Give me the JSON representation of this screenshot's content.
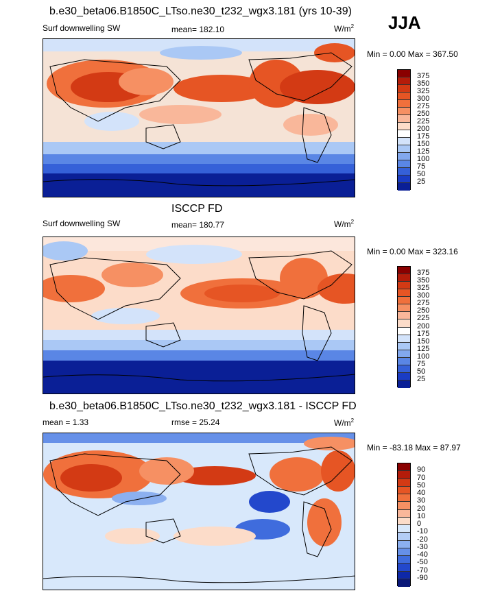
{
  "season": "JJA",
  "panels": [
    {
      "title": "b.e30_beta06.B1850C_LTso.ne30_t232_wgx3.181 (yrs 10-39)",
      "left_label": "Surf downwelling SW",
      "center_label": "mean= 182.10",
      "units_base": "W/m",
      "units_exp": "2",
      "minmax": "Min =    0.00 Max = 367.50",
      "colorbar": {
        "labels": [
          "375",
          "350",
          "325",
          "300",
          "275",
          "250",
          "225",
          "200",
          "175",
          "150",
          "125",
          "100",
          "75",
          "50",
          "25"
        ],
        "colors": [
          "#8a0000",
          "#b41c0a",
          "#d33a14",
          "#e65524",
          "#f0703c",
          "#f69063",
          "#f9b79a",
          "#fcdcc9",
          "#ffffff",
          "#d3e3fa",
          "#aac8f5",
          "#82a8ee",
          "#5a86e5",
          "#3560d8",
          "#1a3cc4",
          "#0a1f96"
        ]
      }
    },
    {
      "title": "ISCCP FD",
      "left_label": "Surf downwelling SW",
      "center_label": "mean= 180.77",
      "units_base": "W/m",
      "units_exp": "2",
      "minmax": "Min =    0.00 Max = 323.16",
      "colorbar": {
        "labels": [
          "375",
          "350",
          "325",
          "300",
          "275",
          "250",
          "225",
          "200",
          "175",
          "150",
          "125",
          "100",
          "75",
          "50",
          "25"
        ],
        "colors": [
          "#8a0000",
          "#b41c0a",
          "#d33a14",
          "#e65524",
          "#f0703c",
          "#f69063",
          "#f9b79a",
          "#fcdcc9",
          "#ffffff",
          "#d3e3fa",
          "#aac8f5",
          "#82a8ee",
          "#5a86e5",
          "#3560d8",
          "#1a3cc4",
          "#0a1f96"
        ]
      }
    },
    {
      "title": "b.e30_beta06.B1850C_LTso.ne30_t232_wgx3.181 - ISCCP FD",
      "left_label": "mean =   1.33",
      "center_label": "rmse =  25.24",
      "units_base": "W/m",
      "units_exp": "2",
      "minmax": "Min = -83.18 Max =  87.97",
      "colorbar": {
        "labels": [
          "90",
          "70",
          "50",
          "40",
          "30",
          "20",
          "10",
          "0",
          "-10",
          "-20",
          "-30",
          "-40",
          "-50",
          "-70",
          "-90"
        ],
        "colors": [
          "#8a0000",
          "#b41c0a",
          "#d33a14",
          "#e65524",
          "#f0703c",
          "#f69063",
          "#f9b79a",
          "#fcdcc9",
          "#d8e8fb",
          "#b3cdf6",
          "#8cb0f0",
          "#6690e8",
          "#3f6cdd",
          "#2348cc",
          "#0e28a8",
          "#0a1878"
        ]
      }
    }
  ]
}
